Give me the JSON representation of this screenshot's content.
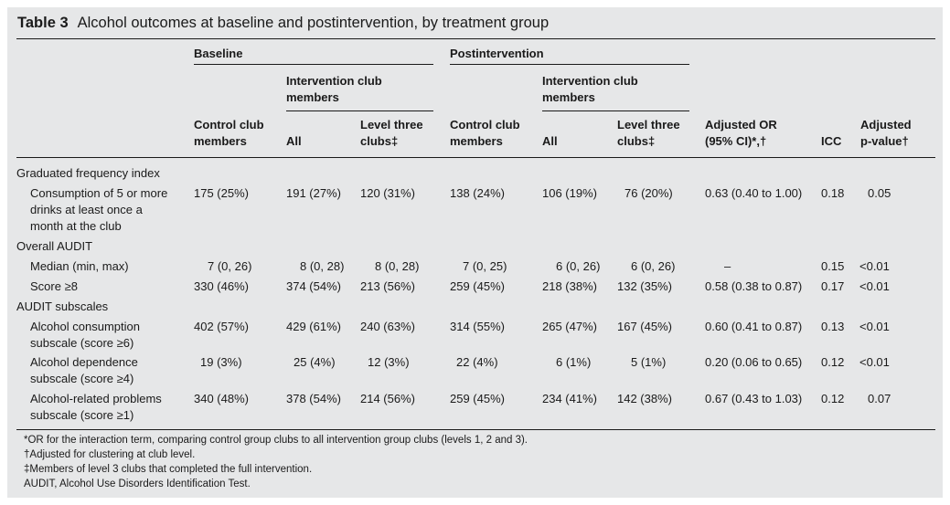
{
  "title": {
    "label": "Table 3",
    "text": "Alcohol outcomes at baseline and postintervention, by treatment group"
  },
  "headers": {
    "baseline": "Baseline",
    "postintervention": "Postintervention",
    "intervention_members_1": "Intervention club",
    "intervention_members_2": "members",
    "control_1": "Control club",
    "control_2": "members",
    "all": "All",
    "level3_1": "Level three",
    "level3_2": "clubs‡",
    "adjusted_or_1": "Adjusted OR",
    "adjusted_or_2": "(95% CI)*,†",
    "icc": "ICC",
    "adj_p_1": "Adjusted",
    "adj_p_2": "p-value†"
  },
  "sections": {
    "gfi": "Graduated frequency index",
    "overall_audit": "Overall AUDIT",
    "audit_subscales": "AUDIT subscales"
  },
  "rows": {
    "consumption": {
      "label": [
        "Consumption of 5 or more",
        "drinks at least once a",
        "month at the club"
      ],
      "values": [
        "175 (25%)",
        "191 (27%)",
        "120 (31%)",
        "138 (24%)",
        "106 (19%)",
        "76 (20%)",
        "0.63 (0.40 to 1.00)",
        "0.18",
        "0.05"
      ]
    },
    "median": {
      "label": [
        "Median (min, max)"
      ],
      "values": [
        "7 (0, 26)",
        "8 (0, 28)",
        "8 (0, 28)",
        "7 (0, 25)",
        "6 (0, 26)",
        "6 (0, 26)",
        "–",
        "0.15",
        "<0.01"
      ]
    },
    "score8": {
      "label": [
        "Score ≥8"
      ],
      "values": [
        "330 (46%)",
        "374 (54%)",
        "213 (56%)",
        "259 (45%)",
        "218 (38%)",
        "132 (35%)",
        "0.58 (0.38 to 0.87)",
        "0.17",
        "<0.01"
      ]
    },
    "alc_consumption": {
      "label": [
        "Alcohol consumption",
        "subscale (score ≥6)"
      ],
      "values": [
        "402 (57%)",
        "429 (61%)",
        "240 (63%)",
        "314 (55%)",
        "265 (47%)",
        "167 (45%)",
        "0.60 (0.41 to 0.87)",
        "0.13",
        "<0.01"
      ]
    },
    "alc_dependence": {
      "label": [
        "Alcohol dependence",
        "subscale (score ≥4)"
      ],
      "values": [
        "19 (3%)",
        "25 (4%)",
        "12 (3%)",
        "22 (4%)",
        "6 (1%)",
        "5 (1%)",
        "0.20 (0.06 to 0.65)",
        "0.12",
        "<0.01"
      ]
    },
    "alc_problems": {
      "label": [
        "Alcohol-related problems",
        "subscale (score ≥1)"
      ],
      "values": [
        "340 (48%)",
        "378 (54%)",
        "214 (56%)",
        "259 (45%)",
        "234 (41%)",
        "142 (38%)",
        "0.67 (0.43 to 1.03)",
        "0.12",
        "0.07"
      ]
    }
  },
  "footnotes": [
    "*OR for the interaction term, comparing control group clubs to all intervention group clubs (levels 1, 2 and 3).",
    "†Adjusted for clustering at club level.",
    "‡Members of level 3 clubs that completed the full intervention.",
    "AUDIT, Alcohol Use Disorders Identification Test."
  ]
}
